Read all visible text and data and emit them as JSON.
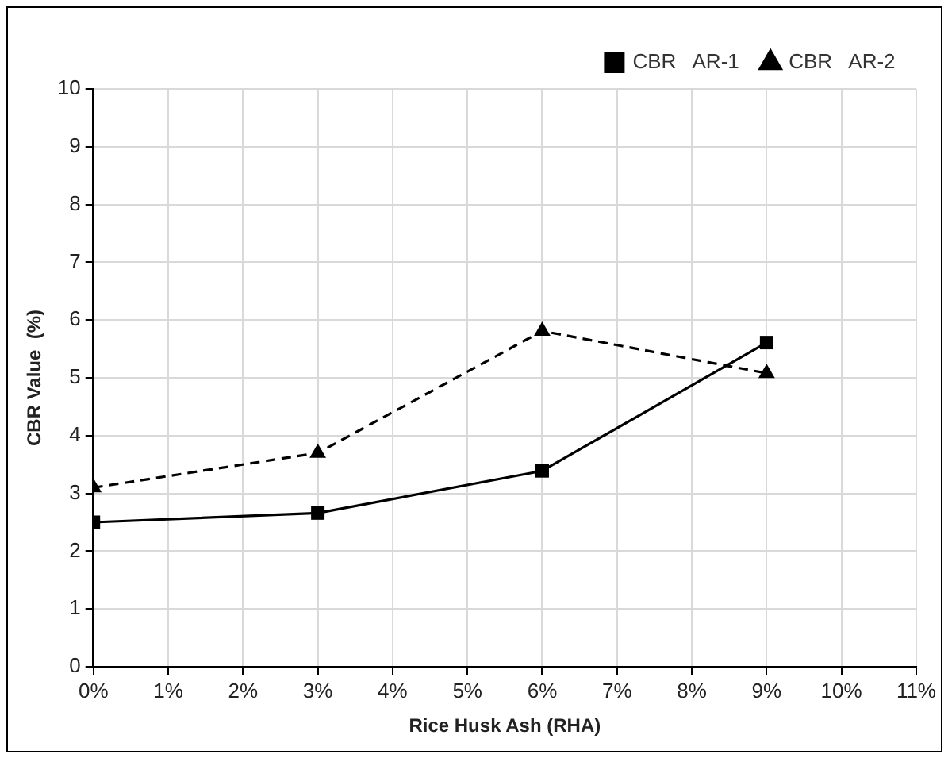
{
  "chart_data": {
    "type": "line",
    "xlabel": "Rice Husk Ash (RHA)",
    "ylabel": "CBR Value  (%)",
    "x": [
      0,
      3,
      6,
      9
    ],
    "series": [
      {
        "name": "CBR   AR-1",
        "color": "#000000",
        "values": [
          2.5,
          2.66,
          3.39,
          5.61
        ],
        "marker": "square",
        "line_style": "solid"
      },
      {
        "name": "CBR   AR-2",
        "color": "#000000",
        "values": [
          3.1,
          3.7,
          5.81,
          5.08
        ],
        "marker": "triangle",
        "line_style": "dashed"
      }
    ],
    "xlim": [
      0,
      11
    ],
    "xticks": [
      {
        "value": 0,
        "label": "0%"
      },
      {
        "value": 1,
        "label": "1%"
      },
      {
        "value": 2,
        "label": "2%"
      },
      {
        "value": 3,
        "label": "3%"
      },
      {
        "value": 4,
        "label": "4%"
      },
      {
        "value": 5,
        "label": "5%"
      },
      {
        "value": 6,
        "label": "6%"
      },
      {
        "value": 7,
        "label": "7%"
      },
      {
        "value": 8,
        "label": "8%"
      },
      {
        "value": 9,
        "label": "9%"
      },
      {
        "value": 10,
        "label": "10%"
      },
      {
        "value": 11,
        "label": "11%"
      }
    ],
    "ylim": [
      0,
      10
    ],
    "yticks": [
      0,
      1,
      2,
      3,
      4,
      5,
      6,
      7,
      8,
      9,
      10
    ],
    "grid": true,
    "legend": "top right"
  }
}
